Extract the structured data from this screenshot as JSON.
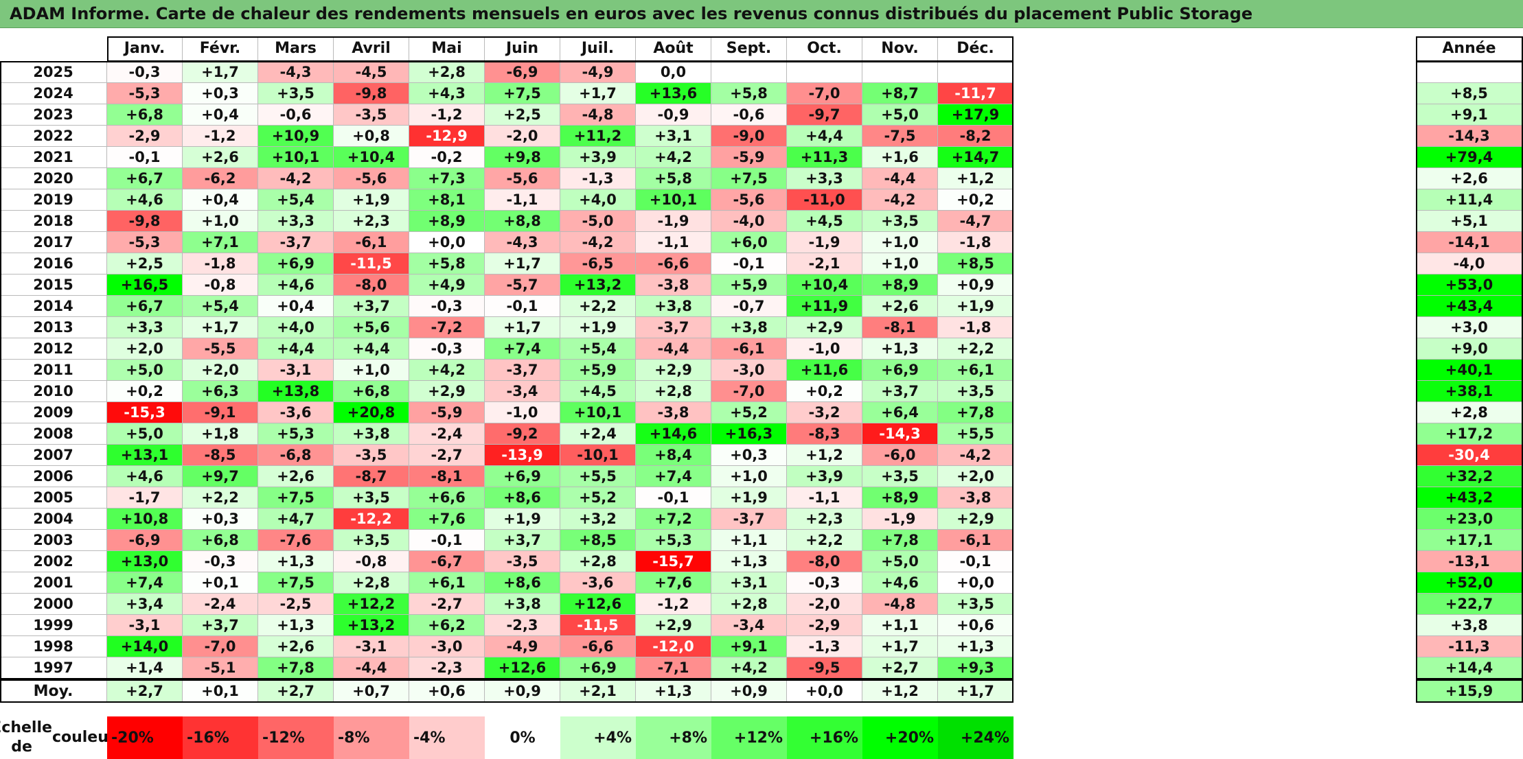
{
  "title": "ADAM Informe. Carte de chaleur des rendements mensuels en euros avec les revenus connus distribués du placement Public Storage",
  "chart_data": {
    "type": "heatmap",
    "title": "ADAM Informe. Carte de chaleur des rendements mensuels en euros avec les revenus connus distribués du placement Public Storage",
    "months": [
      "Janv.",
      "Févr.",
      "Mars",
      "Avril",
      "Mai",
      "Juin",
      "Juil.",
      "Août",
      "Sept.",
      "Oct.",
      "Nov.",
      "Déc."
    ],
    "year_header": "Année",
    "rows": [
      {
        "year": "2025",
        "values": [
          "-0,3",
          "+1,7",
          "-4,3",
          "-4,5",
          "+2,8",
          "-6,9",
          "-4,9",
          "0,0",
          "",
          "",
          "",
          ""
        ],
        "annual": ""
      },
      {
        "year": "2024",
        "values": [
          "-5,3",
          "+0,3",
          "+3,5",
          "-9,8",
          "+4,3",
          "+7,5",
          "+1,7",
          "+13,6",
          "+5,8",
          "-7,0",
          "+8,7",
          "-11,7"
        ],
        "annual": "+8,5"
      },
      {
        "year": "2023",
        "values": [
          "+6,8",
          "+0,4",
          "-0,6",
          "-3,5",
          "-1,2",
          "+2,5",
          "-4,8",
          "-0,9",
          "-0,6",
          "-9,7",
          "+5,0",
          "+17,9"
        ],
        "annual": "+9,1"
      },
      {
        "year": "2022",
        "values": [
          "-2,9",
          "-1,2",
          "+10,9",
          "+0,8",
          "-12,9",
          "-2,0",
          "+11,2",
          "+3,1",
          "-9,0",
          "+4,4",
          "-7,5",
          "-8,2"
        ],
        "annual": "-14,3"
      },
      {
        "year": "2021",
        "values": [
          "-0,1",
          "+2,6",
          "+10,1",
          "+10,4",
          "-0,2",
          "+9,8",
          "+3,9",
          "+4,2",
          "-5,9",
          "+11,3",
          "+1,6",
          "+14,7"
        ],
        "annual": "+79,4"
      },
      {
        "year": "2020",
        "values": [
          "+6,7",
          "-6,2",
          "-4,2",
          "-5,6",
          "+7,3",
          "-5,6",
          "-1,3",
          "+5,8",
          "+7,5",
          "+3,3",
          "-4,4",
          "+1,2"
        ],
        "annual": "+2,6"
      },
      {
        "year": "2019",
        "values": [
          "+4,6",
          "+0,4",
          "+5,4",
          "+1,9",
          "+8,1",
          "-1,1",
          "+4,0",
          "+10,1",
          "-5,6",
          "-11,0",
          "-4,2",
          "+0,2"
        ],
        "annual": "+11,4"
      },
      {
        "year": "2018",
        "values": [
          "-9,8",
          "+1,0",
          "+3,3",
          "+2,3",
          "+8,9",
          "+8,8",
          "-5,0",
          "-1,9",
          "-4,0",
          "+4,5",
          "+3,5",
          "-4,7"
        ],
        "annual": "+5,1"
      },
      {
        "year": "2017",
        "values": [
          "-5,3",
          "+7,1",
          "-3,7",
          "-6,1",
          "+0,0",
          "-4,3",
          "-4,2",
          "-1,1",
          "+6,0",
          "-1,9",
          "+1,0",
          "-1,8"
        ],
        "annual": "-14,1"
      },
      {
        "year": "2016",
        "values": [
          "+2,5",
          "-1,8",
          "+6,9",
          "-11,5",
          "+5,8",
          "+1,7",
          "-6,5",
          "-6,6",
          "-0,1",
          "-2,1",
          "+1,0",
          "+8,5"
        ],
        "annual": "-4,0"
      },
      {
        "year": "2015",
        "values": [
          "+16,5",
          "-0,8",
          "+4,6",
          "-8,0",
          "+4,9",
          "-5,7",
          "+13,2",
          "-3,8",
          "+5,9",
          "+10,4",
          "+8,9",
          "+0,9"
        ],
        "annual": "+53,0"
      },
      {
        "year": "2014",
        "values": [
          "+6,7",
          "+5,4",
          "+0,4",
          "+3,7",
          "-0,3",
          "-0,1",
          "+2,2",
          "+3,8",
          "-0,7",
          "+11,9",
          "+2,6",
          "+1,9"
        ],
        "annual": "+43,4"
      },
      {
        "year": "2013",
        "values": [
          "+3,3",
          "+1,7",
          "+4,0",
          "+5,6",
          "-7,2",
          "+1,7",
          "+1,9",
          "-3,7",
          "+3,8",
          "+2,9",
          "-8,1",
          "-1,8"
        ],
        "annual": "+3,0"
      },
      {
        "year": "2012",
        "values": [
          "+2,0",
          "-5,5",
          "+4,4",
          "+4,4",
          "-0,3",
          "+7,4",
          "+5,4",
          "-4,4",
          "-6,1",
          "-1,0",
          "+1,3",
          "+2,2"
        ],
        "annual": "+9,0"
      },
      {
        "year": "2011",
        "values": [
          "+5,0",
          "+2,0",
          "-3,1",
          "+1,0",
          "+4,2",
          "-3,7",
          "+5,9",
          "+2,9",
          "-3,0",
          "+11,6",
          "+6,9",
          "+6,1"
        ],
        "annual": "+40,1"
      },
      {
        "year": "2010",
        "values": [
          "+0,2",
          "+6,3",
          "+13,8",
          "+6,8",
          "+2,9",
          "-3,4",
          "+4,5",
          "+2,8",
          "-7,0",
          "+0,2",
          "+3,7",
          "+3,5"
        ],
        "annual": "+38,1"
      },
      {
        "year": "2009",
        "values": [
          "-15,3",
          "-9,1",
          "-3,6",
          "+20,8",
          "-5,9",
          "-1,0",
          "+10,1",
          "-3,8",
          "+5,2",
          "-3,2",
          "+6,4",
          "+7,8"
        ],
        "annual": "+2,8"
      },
      {
        "year": "2008",
        "values": [
          "+5,0",
          "+1,8",
          "+5,3",
          "+3,8",
          "-2,4",
          "-9,2",
          "+2,4",
          "+14,6",
          "+16,3",
          "-8,3",
          "-14,3",
          "+5,5"
        ],
        "annual": "+17,2"
      },
      {
        "year": "2007",
        "values": [
          "+13,1",
          "-8,5",
          "-6,8",
          "-3,5",
          "-2,7",
          "-13,9",
          "-10,1",
          "+8,4",
          "+0,3",
          "+1,2",
          "-6,0",
          "-4,2"
        ],
        "annual": "-30,4"
      },
      {
        "year": "2006",
        "values": [
          "+4,6",
          "+9,7",
          "+2,6",
          "-8,7",
          "-8,1",
          "+6,9",
          "+5,5",
          "+7,4",
          "+1,0",
          "+3,9",
          "+3,5",
          "+2,0"
        ],
        "annual": "+32,2"
      },
      {
        "year": "2005",
        "values": [
          "-1,7",
          "+2,2",
          "+7,5",
          "+3,5",
          "+6,6",
          "+8,6",
          "+5,2",
          "-0,1",
          "+1,9",
          "-1,1",
          "+8,9",
          "-3,8"
        ],
        "annual": "+43,2"
      },
      {
        "year": "2004",
        "values": [
          "+10,8",
          "+0,3",
          "+4,7",
          "-12,2",
          "+7,6",
          "+1,9",
          "+3,2",
          "+7,2",
          "-3,7",
          "+2,3",
          "-1,9",
          "+2,9"
        ],
        "annual": "+23,0"
      },
      {
        "year": "2003",
        "values": [
          "-6,9",
          "+6,8",
          "-7,6",
          "+3,5",
          "-0,1",
          "+3,7",
          "+8,5",
          "+5,3",
          "+1,1",
          "+2,2",
          "+7,8",
          "-6,1"
        ],
        "annual": "+17,1"
      },
      {
        "year": "2002",
        "values": [
          "+13,0",
          "-0,3",
          "+1,3",
          "-0,8",
          "-6,7",
          "-3,5",
          "+2,8",
          "-15,7",
          "+1,3",
          "-8,0",
          "+5,0",
          "-0,1"
        ],
        "annual": "-13,1"
      },
      {
        "year": "2001",
        "values": [
          "+7,4",
          "+0,1",
          "+7,5",
          "+2,8",
          "+6,1",
          "+8,6",
          "-3,6",
          "+7,6",
          "+3,1",
          "-0,3",
          "+4,6",
          "+0,0"
        ],
        "annual": "+52,0"
      },
      {
        "year": "2000",
        "values": [
          "+3,4",
          "-2,4",
          "-2,5",
          "+12,2",
          "-2,7",
          "+3,8",
          "+12,6",
          "-1,2",
          "+2,8",
          "-2,0",
          "-4,8",
          "+3,5"
        ],
        "annual": "+22,7"
      },
      {
        "year": "1999",
        "values": [
          "-3,1",
          "+3,7",
          "+1,3",
          "+13,2",
          "+6,2",
          "-2,3",
          "-11,5",
          "+2,9",
          "-3,4",
          "-2,9",
          "+1,1",
          "+0,6"
        ],
        "annual": "+3,8"
      },
      {
        "year": "1998",
        "values": [
          "+14,0",
          "-7,0",
          "+2,6",
          "-3,1",
          "-3,0",
          "-4,9",
          "-6,6",
          "-12,0",
          "+9,1",
          "-1,3",
          "+1,7",
          "+1,3"
        ],
        "annual": "-11,3"
      },
      {
        "year": "1997",
        "values": [
          "+1,4",
          "-5,1",
          "+7,8",
          "-4,4",
          "-2,3",
          "+12,6",
          "+6,9",
          "-7,1",
          "+4,2",
          "-9,5",
          "+2,7",
          "+9,3"
        ],
        "annual": "+14,4"
      }
    ],
    "average": {
      "label": "Moy.",
      "values": [
        "+2,7",
        "+0,1",
        "+2,7",
        "+0,7",
        "+0,6",
        "+0,9",
        "+2,1",
        "+1,3",
        "+0,9",
        "+0,0",
        "+1,2",
        "+1,7"
      ],
      "annual": "+15,9"
    },
    "color_scale": {
      "label_line1": "Echelle de",
      "label_line2": "couleur",
      "stops": [
        {
          "label": "-20%",
          "value": -20,
          "color": "#ff0000"
        },
        {
          "label": "-16%",
          "value": -16,
          "color": "#ff3333"
        },
        {
          "label": "-12%",
          "value": -12,
          "color": "#ff6666"
        },
        {
          "label": "-8%",
          "value": -8,
          "color": "#ff9999"
        },
        {
          "label": "-4%",
          "value": -4,
          "color": "#ffcccc"
        },
        {
          "label": "0%",
          "value": 0,
          "color": "#ffffff"
        },
        {
          "label": "+4%",
          "value": 4,
          "color": "#ccffcc"
        },
        {
          "label": "+8%",
          "value": 8,
          "color": "#99ff99"
        },
        {
          "label": "+12%",
          "value": 12,
          "color": "#66ff66"
        },
        {
          "label": "+16%",
          "value": 16,
          "color": "#33ff33"
        },
        {
          "label": "+20%",
          "value": 20,
          "color": "#00ff00"
        },
        {
          "label": "+24%",
          "value": 24,
          "color": "#00e000"
        }
      ]
    }
  }
}
